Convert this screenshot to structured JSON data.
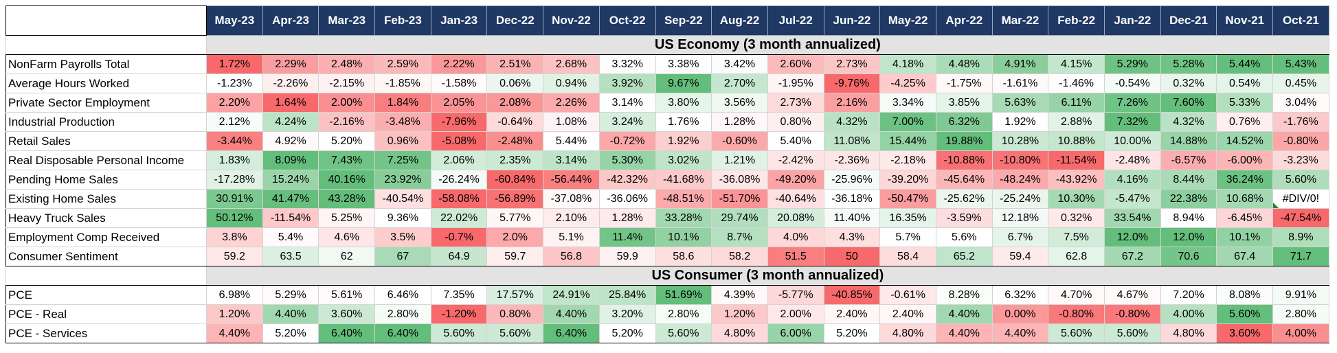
{
  "months": [
    "May-23",
    "Apr-23",
    "Mar-23",
    "Feb-23",
    "Jan-23",
    "Dec-22",
    "Nov-22",
    "Oct-22",
    "Sep-22",
    "Aug-22",
    "Jul-22",
    "Jun-22",
    "May-22",
    "Apr-22",
    "Mar-22",
    "Feb-22",
    "Jan-22",
    "Dec-21",
    "Nov-21",
    "Oct-21"
  ],
  "sections": [
    {
      "title": "US Economy (3 month annualized)",
      "rows": [
        {
          "label": "NonFarm Payrolls Total",
          "values": [
            "1.72%",
            "2.29%",
            "2.48%",
            "2.59%",
            "2.22%",
            "2.51%",
            "2.68%",
            "3.32%",
            "3.38%",
            "3.42%",
            "2.60%",
            "2.73%",
            "4.18%",
            "4.48%",
            "4.91%",
            "4.15%",
            "5.29%",
            "5.28%",
            "5.44%",
            "5.43%"
          ]
        },
        {
          "label": "Average Hours Worked",
          "values": [
            "-1.23%",
            "-2.26%",
            "-2.15%",
            "-1.85%",
            "-1.58%",
            "0.06%",
            "0.94%",
            "3.92%",
            "9.67%",
            "2.70%",
            "-1.95%",
            "-9.76%",
            "-4.25%",
            "-1.75%",
            "-1.61%",
            "-1.46%",
            "-0.54%",
            "0.32%",
            "0.54%",
            "0.45%"
          ]
        },
        {
          "label": "Private Sector Employment",
          "values": [
            "2.20%",
            "1.64%",
            "2.00%",
            "1.84%",
            "2.05%",
            "2.08%",
            "2.26%",
            "3.14%",
            "3.80%",
            "3.56%",
            "2.73%",
            "2.16%",
            "3.34%",
            "3.85%",
            "5.63%",
            "6.11%",
            "7.26%",
            "7.60%",
            "5.33%",
            "3.04%"
          ]
        },
        {
          "label": "Industrial Production",
          "values": [
            "2.12%",
            "4.24%",
            "-2.16%",
            "-3.48%",
            "-7.96%",
            "-0.64%",
            "1.08%",
            "3.24%",
            "1.76%",
            "1.28%",
            "0.80%",
            "4.32%",
            "7.00%",
            "6.32%",
            "1.92%",
            "2.88%",
            "7.32%",
            "4.32%",
            "0.76%",
            "-1.76%"
          ]
        },
        {
          "label": "Retail Sales",
          "values": [
            "-3.44%",
            "4.92%",
            "5.20%",
            "0.96%",
            "-5.08%",
            "-2.48%",
            "5.44%",
            "-0.72%",
            "1.92%",
            "-0.60%",
            "5.40%",
            "11.08%",
            "15.44%",
            "19.88%",
            "10.28%",
            "10.88%",
            "10.00%",
            "14.88%",
            "14.52%",
            "-0.80%"
          ]
        },
        {
          "label": "Real Disposable Personal Income",
          "values": [
            "1.83%",
            "8.09%",
            "7.43%",
            "7.25%",
            "2.06%",
            "2.35%",
            "3.14%",
            "5.30%",
            "3.02%",
            "1.21%",
            "-2.42%",
            "-2.36%",
            "-2.18%",
            "-10.88%",
            "-10.80%",
            "-11.54%",
            "-2.48%",
            "-6.57%",
            "-6.00%",
            "-3.23%"
          ]
        },
        {
          "label": "Pending Home Sales",
          "values": [
            "-17.28%",
            "15.24%",
            "40.16%",
            "23.92%",
            "-26.24%",
            "-60.84%",
            "-56.44%",
            "-42.32%",
            "-41.68%",
            "-36.08%",
            "-49.20%",
            "-25.96%",
            "-39.20%",
            "-45.64%",
            "-48.24%",
            "-43.92%",
            "4.16%",
            "8.44%",
            "36.24%",
            "5.60%"
          ]
        },
        {
          "label": "Existing Home Sales",
          "values": [
            "30.91%",
            "41.47%",
            "43.28%",
            "-40.54%",
            "-58.08%",
            "-56.89%",
            "-37.08%",
            "-36.06%",
            "-48.51%",
            "-51.70%",
            "-40.64%",
            "-36.18%",
            "-50.47%",
            "-25.62%",
            "-25.24%",
            "10.30%",
            "-5.47%",
            "22.38%",
            "10.68%",
            "#DIV/0!"
          ]
        },
        {
          "label": "Heavy Truck Sales",
          "values": [
            "50.12%",
            "-11.54%",
            "5.25%",
            "9.36%",
            "22.02%",
            "5.77%",
            "2.10%",
            "1.28%",
            "33.28%",
            "29.74%",
            "20.08%",
            "11.40%",
            "16.35%",
            "-3.59%",
            "12.18%",
            "0.32%",
            "33.54%",
            "8.94%",
            "-6.45%",
            "-47.54%"
          ]
        },
        {
          "label": "Employment Comp Received",
          "values": [
            "3.8%",
            "5.4%",
            "4.6%",
            "3.5%",
            "-0.7%",
            "2.0%",
            "5.1%",
            "11.4%",
            "10.1%",
            "8.7%",
            "4.0%",
            "4.3%",
            "5.7%",
            "5.6%",
            "6.7%",
            "7.5%",
            "12.0%",
            "12.0%",
            "10.1%",
            "8.9%"
          ]
        },
        {
          "label": "Consumer Sentiment",
          "values": [
            "59.2",
            "63.5",
            "62",
            "67",
            "64.9",
            "59.7",
            "56.8",
            "59.9",
            "58.6",
            "58.2",
            "51.5",
            "50",
            "58.4",
            "65.2",
            "59.4",
            "62.8",
            "67.2",
            "70.6",
            "67.4",
            "71.7"
          ]
        }
      ]
    },
    {
      "title": "US Consumer (3 month annualized)",
      "rows": [
        {
          "label": "PCE",
          "values": [
            "6.98%",
            "5.29%",
            "5.61%",
            "6.46%",
            "7.35%",
            "17.57%",
            "24.91%",
            "25.84%",
            "51.69%",
            "4.39%",
            "-5.77%",
            "-40.85%",
            "-0.61%",
            "8.28%",
            "6.32%",
            "4.70%",
            "4.67%",
            "7.20%",
            "8.08%",
            "9.91%"
          ]
        },
        {
          "label": "PCE - Real",
          "values": [
            "1.20%",
            "4.40%",
            "3.60%",
            "2.80%",
            "-1.20%",
            "0.80%",
            "4.40%",
            "3.20%",
            "2.80%",
            "1.20%",
            "2.00%",
            "2.40%",
            "2.40%",
            "4.40%",
            "0.00%",
            "-0.80%",
            "-0.80%",
            "4.00%",
            "5.60%",
            "2.80%"
          ]
        },
        {
          "label": "PCE - Services",
          "values": [
            "4.40%",
            "5.20%",
            "6.40%",
            "6.40%",
            "5.60%",
            "5.60%",
            "6.40%",
            "5.20%",
            "5.60%",
            "4.80%",
            "6.00%",
            "5.20%",
            "4.80%",
            "4.40%",
            "4.40%",
            "5.60%",
            "5.60%",
            "4.80%",
            "3.60%",
            "4.00%"
          ]
        }
      ]
    }
  ],
  "colors": {
    "high": "#63be7b",
    "mid": "#ffffff",
    "low": "#f8696b",
    "header_bg": "#1f3864",
    "section_bg": "#e3e3e3"
  },
  "icons": {
    "error_flag": "green-triangle-icon"
  }
}
